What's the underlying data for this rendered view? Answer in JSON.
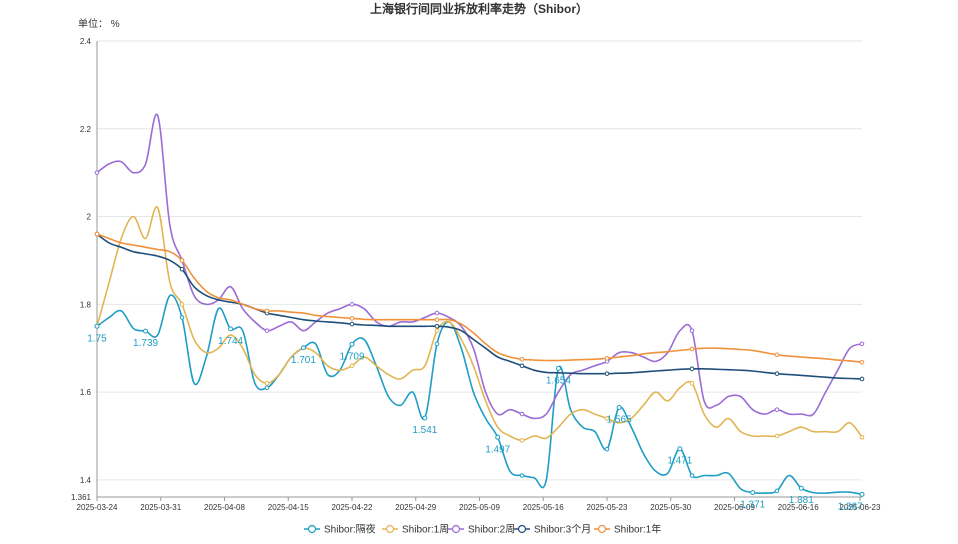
{
  "chart_data": {
    "type": "line",
    "title": "上海银行间同业拆放利率走势（Shibor）",
    "unit_label": "单位： %",
    "x_ticks": [
      "2025-03-24",
      "2025-03-31",
      "2025-04-08",
      "2025-04-15",
      "2025-04-22",
      "2025-04-29",
      "2025-05-09",
      "2025-05-16",
      "2025-05-23",
      "2025-05-30",
      "2025-06-09",
      "2025-06-16",
      "2025-06-23"
    ],
    "y_ticks": [
      "1.361",
      "1.4",
      "1.6",
      "1.8",
      "2",
      "2.2",
      "2.4"
    ],
    "ylim": [
      1.361,
      2.4
    ],
    "grid": true,
    "legend_position": "bottom",
    "series": [
      {
        "name": "Shibor:隔夜",
        "color": "#1e9ec4",
        "values": [
          1.75,
          1.77,
          1.785,
          1.745,
          1.739,
          1.73,
          1.82,
          1.77,
          1.62,
          1.68,
          1.79,
          1.744,
          1.74,
          1.62,
          1.61,
          1.64,
          1.68,
          1.701,
          1.71,
          1.64,
          1.65,
          1.709,
          1.72,
          1.66,
          1.59,
          1.57,
          1.6,
          1.541,
          1.71,
          1.76,
          1.7,
          1.6,
          1.54,
          1.497,
          1.42,
          1.41,
          1.405,
          1.4,
          1.654,
          1.56,
          1.52,
          1.51,
          1.47,
          1.565,
          1.52,
          1.46,
          1.42,
          1.415,
          1.471,
          1.41,
          1.41,
          1.41,
          1.415,
          1.38,
          1.371,
          1.37,
          1.375,
          1.41,
          1.381,
          1.371,
          1.37,
          1.372,
          1.372,
          1.367
        ]
      },
      {
        "name": "Shibor:1周",
        "color": "#e2b552",
        "values": [
          1.75,
          1.85,
          1.95,
          2.0,
          1.95,
          2.02,
          1.85,
          1.8,
          1.72,
          1.69,
          1.7,
          1.73,
          1.7,
          1.64,
          1.62,
          1.64,
          1.68,
          1.7,
          1.69,
          1.66,
          1.65,
          1.66,
          1.68,
          1.66,
          1.64,
          1.63,
          1.65,
          1.66,
          1.74,
          1.76,
          1.72,
          1.66,
          1.58,
          1.52,
          1.5,
          1.49,
          1.5,
          1.495,
          1.52,
          1.55,
          1.56,
          1.55,
          1.54,
          1.53,
          1.54,
          1.57,
          1.6,
          1.58,
          1.61,
          1.62,
          1.55,
          1.52,
          1.54,
          1.51,
          1.5,
          1.5,
          1.5,
          1.51,
          1.52,
          1.51,
          1.51,
          1.51,
          1.53,
          1.497
        ]
      },
      {
        "name": "Shibor:2周",
        "color": "#9b6bd6",
        "values": [
          2.1,
          2.12,
          2.125,
          2.1,
          2.12,
          2.23,
          1.98,
          1.9,
          1.82,
          1.8,
          1.81,
          1.84,
          1.79,
          1.76,
          1.74,
          1.75,
          1.76,
          1.74,
          1.76,
          1.78,
          1.79,
          1.8,
          1.79,
          1.76,
          1.75,
          1.76,
          1.76,
          1.77,
          1.78,
          1.77,
          1.75,
          1.7,
          1.6,
          1.55,
          1.56,
          1.55,
          1.54,
          1.55,
          1.6,
          1.64,
          1.65,
          1.66,
          1.67,
          1.69,
          1.69,
          1.68,
          1.67,
          1.69,
          1.74,
          1.74,
          1.58,
          1.57,
          1.59,
          1.59,
          1.56,
          1.55,
          1.56,
          1.55,
          1.55,
          1.55,
          1.6,
          1.65,
          1.7,
          1.71
        ]
      },
      {
        "name": "Shibor:3个月",
        "color": "#1f4e79",
        "values": [
          1.96,
          1.94,
          1.93,
          1.92,
          1.915,
          1.91,
          1.9,
          1.88,
          1.84,
          1.82,
          1.81,
          1.805,
          1.8,
          1.79,
          1.78,
          1.775,
          1.77,
          1.765,
          1.762,
          1.76,
          1.758,
          1.755,
          1.753,
          1.752,
          1.75,
          1.75,
          1.75,
          1.75,
          1.75,
          1.748,
          1.74,
          1.72,
          1.7,
          1.68,
          1.67,
          1.66,
          1.65,
          1.645,
          1.644,
          1.643,
          1.642,
          1.642,
          1.642,
          1.643,
          1.644,
          1.646,
          1.648,
          1.65,
          1.652,
          1.653,
          1.653,
          1.652,
          1.651,
          1.65,
          1.648,
          1.645,
          1.642,
          1.64,
          1.638,
          1.636,
          1.634,
          1.632,
          1.631,
          1.63
        ]
      },
      {
        "name": "Shibor:1年",
        "color": "#f0913c",
        "values": [
          1.96,
          1.95,
          1.94,
          1.935,
          1.93,
          1.925,
          1.92,
          1.9,
          1.86,
          1.83,
          1.815,
          1.81,
          1.8,
          1.79,
          1.785,
          1.785,
          1.782,
          1.78,
          1.775,
          1.772,
          1.77,
          1.768,
          1.766,
          1.765,
          1.765,
          1.765,
          1.765,
          1.765,
          1.765,
          1.765,
          1.755,
          1.735,
          1.71,
          1.69,
          1.68,
          1.675,
          1.673,
          1.672,
          1.672,
          1.673,
          1.674,
          1.675,
          1.677,
          1.68,
          1.683,
          1.687,
          1.69,
          1.692,
          1.695,
          1.698,
          1.7,
          1.7,
          1.699,
          1.697,
          1.695,
          1.69,
          1.685,
          1.682,
          1.68,
          1.678,
          1.676,
          1.673,
          1.671,
          1.668
        ]
      }
    ],
    "data_labels": [
      {
        "series": 0,
        "index": 0,
        "text": "1.75"
      },
      {
        "series": 0,
        "index": 4,
        "text": "1.739"
      },
      {
        "series": 0,
        "index": 11,
        "text": "1.744"
      },
      {
        "series": 0,
        "index": 17,
        "text": "1.701"
      },
      {
        "series": 0,
        "index": 21,
        "text": "1.709"
      },
      {
        "series": 0,
        "index": 27,
        "text": "1.541"
      },
      {
        "series": 0,
        "index": 33,
        "text": "1.497"
      },
      {
        "series": 0,
        "index": 38,
        "text": "1.654"
      },
      {
        "series": 0,
        "index": 43,
        "text": "1.565"
      },
      {
        "series": 0,
        "index": 48,
        "text": "1.471"
      },
      {
        "series": 0,
        "index": 54,
        "text": "1.371"
      },
      {
        "series": 0,
        "index": 58,
        "text": "1.381"
      },
      {
        "series": 0,
        "index": 63,
        "text": "1.367"
      }
    ]
  }
}
